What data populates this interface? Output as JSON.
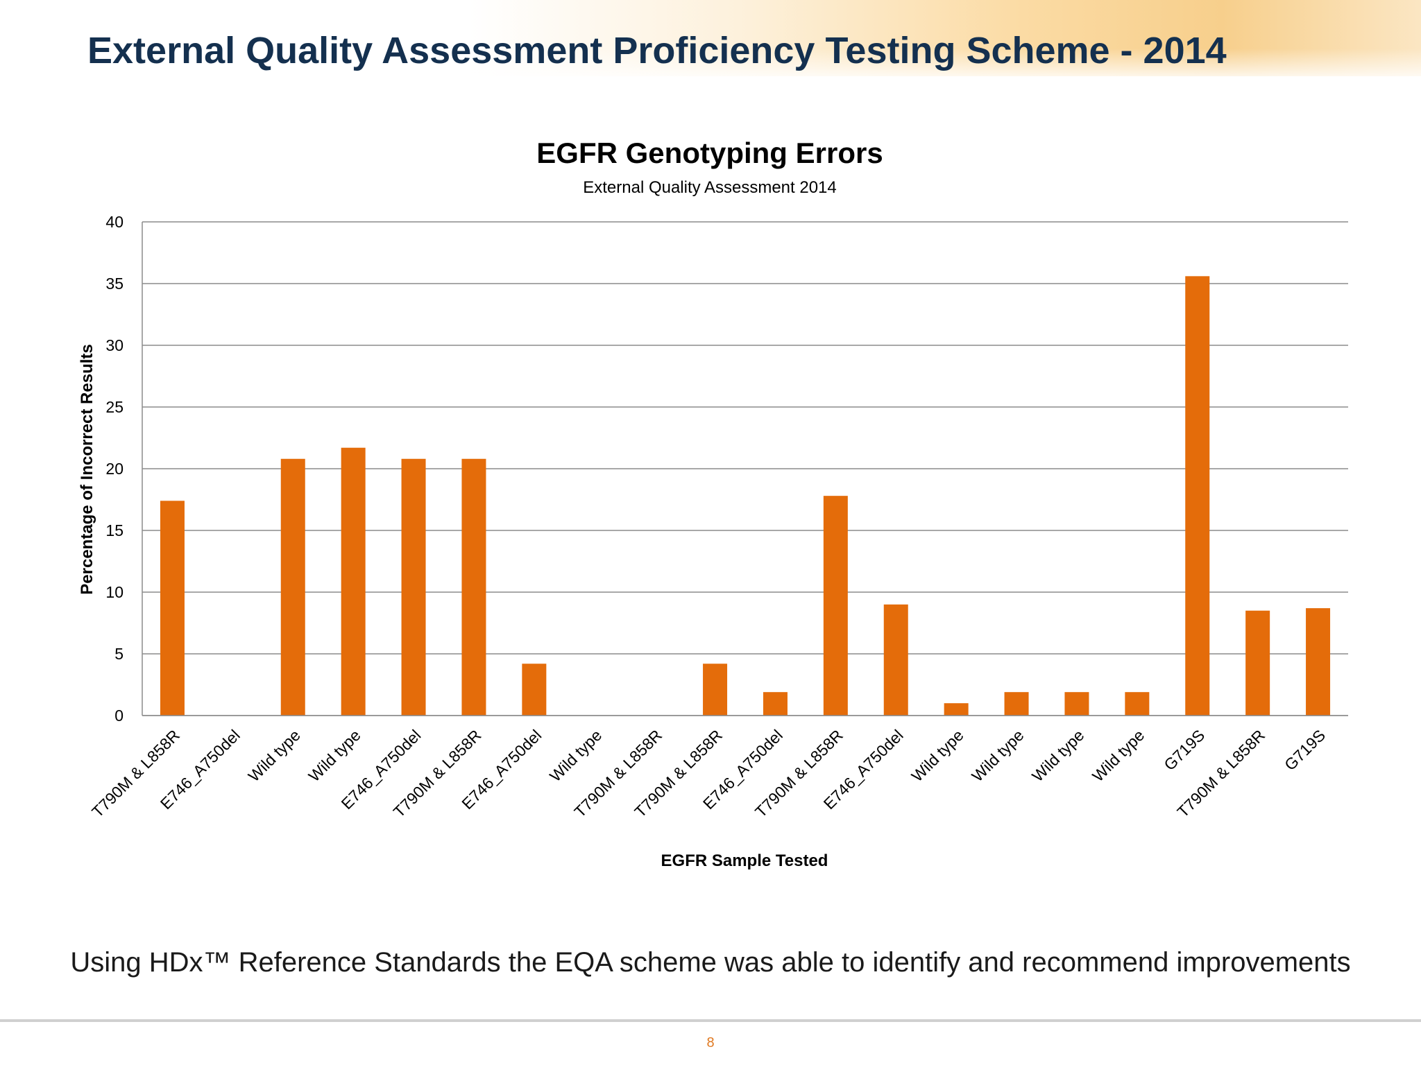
{
  "slide": {
    "title": "External Quality Assessment Proficiency Testing Scheme - 2014",
    "caption": "Using HDx™ Reference Standards the EQA scheme was able to identify and recommend improvements",
    "page_number": "8"
  },
  "colors": {
    "bar": "#e46c0a",
    "title": "#14304f",
    "grid": "#8c8c8c",
    "page_number": "#e07a23"
  },
  "chart_data": {
    "type": "bar",
    "title": "EGFR Genotyping Errors",
    "subtitle": "External Quality Assessment 2014",
    "xlabel": "EGFR Sample Tested",
    "ylabel": "Percentage of Incorrect Results",
    "ylim": [
      0,
      40
    ],
    "yticks": [
      0,
      5,
      10,
      15,
      20,
      25,
      30,
      35,
      40
    ],
    "grid": true,
    "legend": "none",
    "categories": [
      "T790M & L858R",
      "E746_A750del",
      "Wild type",
      "Wild type",
      "E746_A750del",
      "T790M & L858R",
      "E746_A750del",
      "Wild type",
      "T790M & L858R",
      "T790M & L858R",
      "E746_A750del",
      "T790M & L858R",
      "E746_A750del",
      "Wild type",
      "Wild type",
      "Wild type",
      "Wild type",
      "G719S",
      "T790M & L858R",
      "G719S"
    ],
    "values": [
      17.4,
      0,
      20.8,
      21.7,
      20.8,
      20.8,
      4.2,
      0,
      0,
      4.2,
      1.9,
      17.8,
      9.0,
      1.0,
      1.9,
      1.9,
      1.9,
      35.6,
      8.5,
      8.7
    ]
  }
}
